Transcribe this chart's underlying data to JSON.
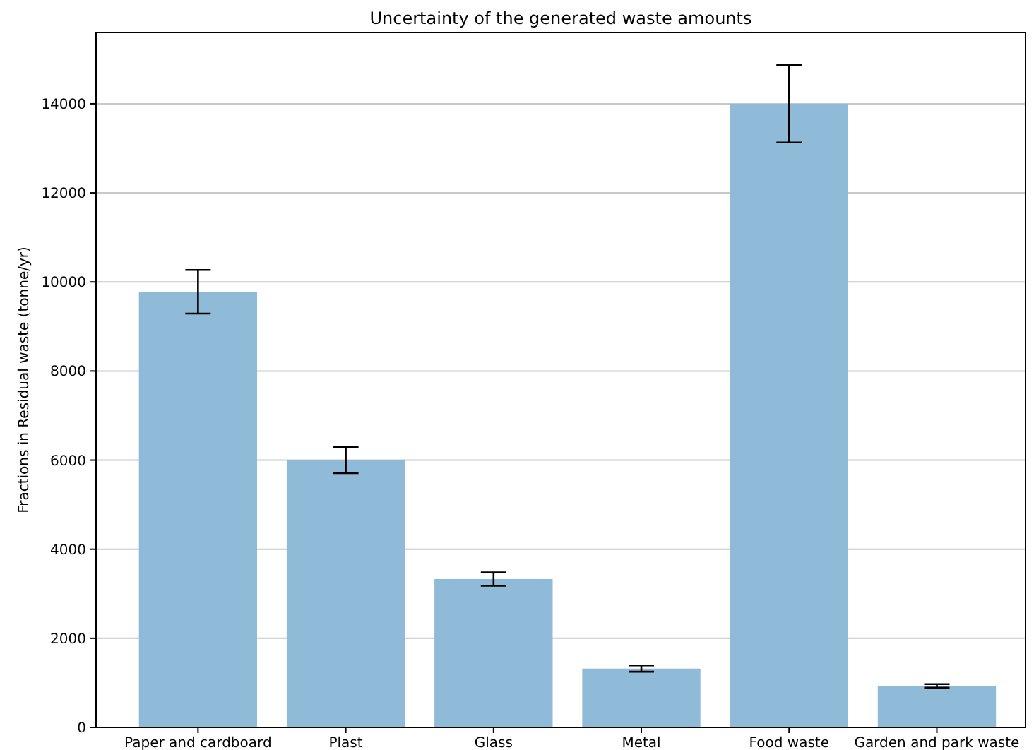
{
  "chart_data": {
    "type": "bar",
    "title": "Uncertainty of the generated waste amounts",
    "ylabel": "Fractions in Residual waste (tonne/yr)",
    "categories": [
      "Paper and cardboard",
      "Plast",
      "Glass",
      "Metal",
      "Food waste",
      "Garden and park waste"
    ],
    "values": [
      9780,
      6000,
      3330,
      1320,
      14000,
      930
    ],
    "errors": [
      490,
      290,
      150,
      70,
      870,
      40
    ],
    "color": "#8fbbd9",
    "ylim": [
      0,
      15600
    ],
    "yticks": [
      0,
      2000,
      4000,
      6000,
      8000,
      10000,
      12000,
      14000
    ],
    "grid": "y"
  }
}
